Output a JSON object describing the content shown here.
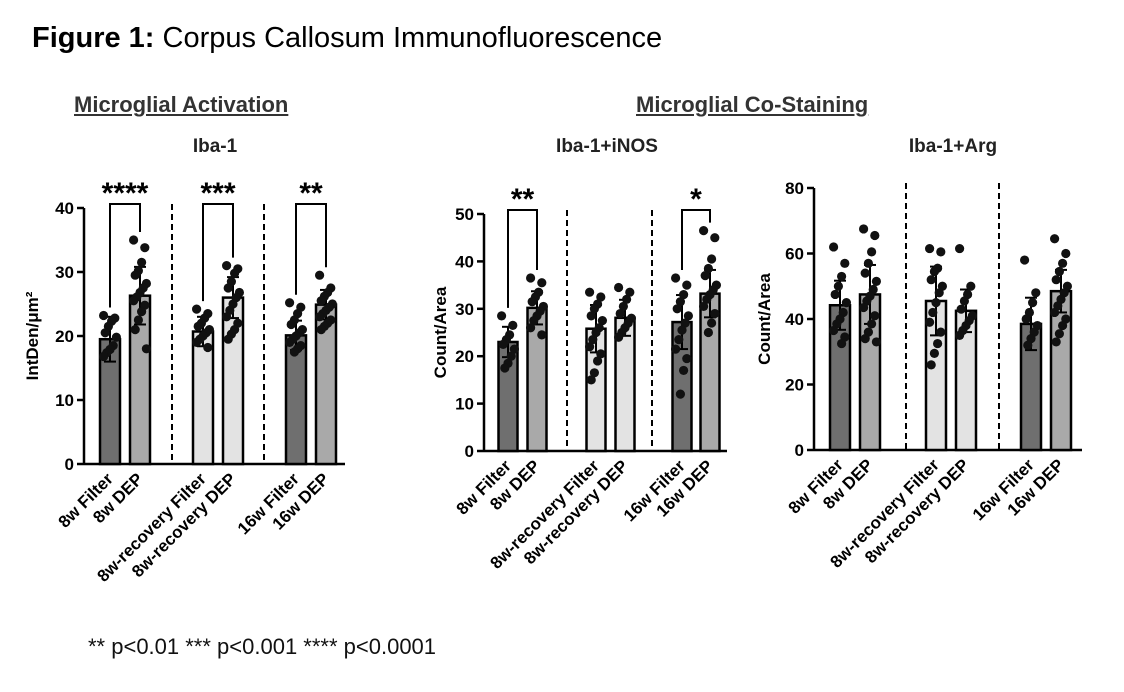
{
  "figure": {
    "title_bold": "Figure 1:",
    "title_rest": "Corpus Callosum Immunofluorescence",
    "section_activation": "Microglial Activation",
    "section_costaining": "Microglial Co-Staining",
    "footnote": "** p<0.01 *** p<0.001 **** p<0.0001"
  },
  "colors": {
    "dark_bar": "#6f6f6f",
    "mid_bar": "#a9a9a9",
    "light_bar": "#e3e3e3",
    "dot": "#111111"
  },
  "chart_data": [
    {
      "type": "bar",
      "title": "Iba-1",
      "ylabel": "IntDen/μm²",
      "xlabel": "",
      "ylim": [
        0,
        40
      ],
      "yticks": [
        0,
        10,
        20,
        30,
        40
      ],
      "grid": false,
      "categories": [
        "8w Filter",
        "8w DEP",
        "8w-recovery Filter",
        "8w-recovery DEP",
        "16w Filter",
        "16w DEP"
      ],
      "values": [
        19.5,
        26.3,
        20.7,
        26.0,
        20.1,
        24.9
      ],
      "errors": [
        3.5,
        4.5,
        2.3,
        3.2,
        2.3,
        2.3
      ],
      "points": [
        [
          23.2,
          22.8,
          22.3,
          21.5,
          20.5,
          19.8,
          18.5,
          17.9,
          17.4,
          16.8
        ],
        [
          35.0,
          33.8,
          31.5,
          30.2,
          29.5,
          28.2,
          27.5,
          26.8,
          26.1,
          25.5,
          24.8,
          23.8,
          22.5,
          21.0,
          18.0
        ],
        [
          24.2,
          23.5,
          22.8,
          22.0,
          21.5,
          21.0,
          20.5,
          20.0,
          19.5,
          19.0,
          18.2
        ],
        [
          31.0,
          30.5,
          29.8,
          28.5,
          27.5,
          26.8,
          26.0,
          25.0,
          24.0,
          23.0,
          22.0,
          21.0,
          20.3,
          19.5
        ],
        [
          25.2,
          24.5,
          23.5,
          22.5,
          21.8,
          21.0,
          20.5,
          20.0,
          19.5,
          19.0,
          18.5,
          18.0,
          17.5
        ],
        [
          29.5,
          27.5,
          26.8,
          26.2,
          25.5,
          25.0,
          24.5,
          24.0,
          23.5,
          23.0,
          22.5,
          22.0,
          21.5,
          21.0
        ]
      ],
      "significance": [
        {
          "group": 0,
          "label": "****"
        },
        {
          "group": 1,
          "label": "***"
        },
        {
          "group": 2,
          "label": "**"
        }
      ]
    },
    {
      "type": "bar",
      "title": "Iba-1+iNOS",
      "ylabel": "Count/Area",
      "xlabel": "",
      "ylim": [
        0,
        50
      ],
      "yticks": [
        0,
        10,
        20,
        30,
        40,
        50
      ],
      "grid": false,
      "categories": [
        "8w Filter",
        "8w DEP",
        "8w-recovery Filter",
        "8w-recovery DEP",
        "16w Filter",
        "16w DEP"
      ],
      "values": [
        23.0,
        30.2,
        25.8,
        28.1,
        27.2,
        33.2
      ],
      "errors": [
        3.2,
        3.5,
        5.0,
        3.8,
        5.7,
        5.0
      ],
      "points": [
        [
          28.5,
          26.5,
          24.5,
          23.5,
          22.5,
          21.5,
          20.0,
          18.5,
          17.5
        ],
        [
          36.5,
          35.5,
          33.5,
          32.5,
          31.5,
          30.5,
          29.5,
          28.5,
          27.5,
          26.0,
          24.5
        ],
        [
          33.5,
          32.5,
          31.0,
          30.0,
          28.5,
          27.5,
          26.0,
          25.0,
          23.5,
          22.0,
          20.5,
          19.0,
          16.5,
          15.0
        ],
        [
          34.5,
          33.5,
          32.0,
          30.5,
          29.0,
          28.0,
          27.0,
          26.0,
          25.0,
          24.0
        ],
        [
          36.5,
          35.0,
          33.0,
          31.5,
          30.0,
          28.5,
          27.0,
          25.5,
          23.5,
          21.5,
          19.5,
          17.0,
          12.0
        ],
        [
          46.5,
          45.0,
          40.5,
          38.5,
          37.0,
          35.0,
          34.0,
          33.0,
          32.0,
          30.5,
          29.0,
          27.0,
          25.0
        ]
      ],
      "significance": [
        {
          "group": 0,
          "label": "**"
        },
        {
          "group": 2,
          "label": "*"
        }
      ]
    },
    {
      "type": "bar",
      "title": "Iba-1+Arg",
      "ylabel": "Count/Area",
      "xlabel": "",
      "ylim": [
        0,
        80
      ],
      "yticks": [
        0,
        20,
        40,
        60,
        80
      ],
      "grid": false,
      "categories": [
        "8w Filter",
        "8w DEP",
        "8w-recovery Filter",
        "8w-recovery DEP",
        "16w Filter",
        "16w DEP"
      ],
      "values": [
        44.2,
        47.5,
        45.5,
        42.5,
        38.5,
        48.5
      ],
      "errors": [
        7.5,
        9.0,
        10.5,
        6.5,
        8.0,
        6.5
      ],
      "points": [
        [
          62.0,
          57.0,
          53.0,
          50.0,
          47.5,
          45.0,
          42.0,
          40.0,
          38.5,
          36.5,
          34.5,
          32.5
        ],
        [
          67.5,
          65.5,
          60.5,
          57.0,
          54.0,
          51.5,
          49.0,
          47.0,
          45.5,
          43.5,
          41.0,
          38.5,
          36.0,
          34.0,
          33.0
        ],
        [
          61.5,
          60.5,
          55.5,
          54.5,
          52.0,
          50.0,
          48.0,
          45.0,
          42.0,
          39.0,
          36.0,
          32.5,
          29.5,
          26.0
        ],
        [
          61.5,
          50.0,
          47.5,
          45.5,
          43.0,
          41.0,
          39.5,
          38.0,
          36.5,
          35.0
        ],
        [
          58.0,
          48.0,
          45.0,
          42.0,
          40.0,
          38.0,
          36.0,
          34.0,
          32.0
        ],
        [
          64.5,
          60.0,
          57.0,
          54.5,
          52.0,
          50.0,
          48.0,
          46.0,
          44.0,
          42.0,
          40.0,
          38.0,
          35.5,
          33.0
        ]
      ],
      "significance": []
    }
  ]
}
